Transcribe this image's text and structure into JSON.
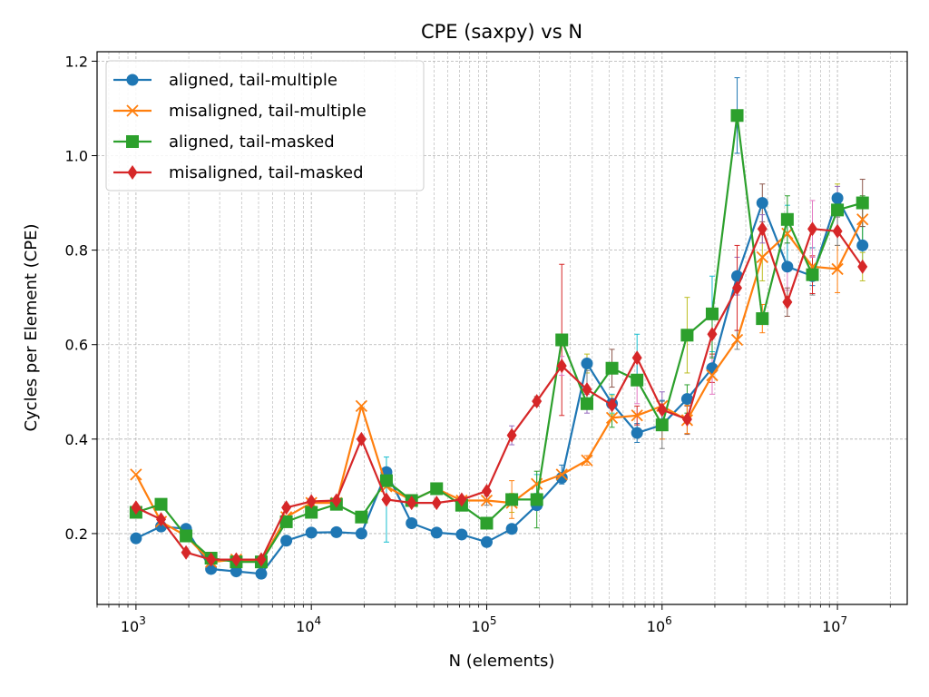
{
  "chart_data": {
    "type": "line",
    "title": "CPE (saxpy) vs N",
    "xlabel": "N (elements)",
    "ylabel": "Cycles per Element (CPE)",
    "xscale": "log",
    "xlim": [
      600,
      25000000
    ],
    "ylim": [
      0.05,
      1.22
    ],
    "yticks": [
      "0.2",
      "0.4",
      "0.6",
      "0.8",
      "1.0",
      "1.2"
    ],
    "xticks": [
      {
        "base": "10",
        "exp": "3"
      },
      {
        "base": "10",
        "exp": "4"
      },
      {
        "base": "10",
        "exp": "5"
      },
      {
        "base": "10",
        "exp": "6"
      },
      {
        "base": "10",
        "exp": "7"
      }
    ],
    "grid": true,
    "legend_position": "top-left",
    "x": [
      1000,
      1390,
      1930,
      2680,
      3730,
      5180,
      7200,
      10000,
      13900,
      19300,
      26800,
      37300,
      51800,
      72000,
      100000,
      139000,
      193000,
      268000,
      373000,
      518000,
      720000,
      1000000,
      1390000,
      1930000,
      2680000,
      3730000,
      5180000,
      7200000,
      10000000,
      13900000
    ],
    "series": [
      {
        "name": "aligned, tail-multiple",
        "color": "#1f77b4",
        "marker": "circle",
        "values": [
          0.19,
          0.215,
          0.21,
          0.125,
          0.12,
          0.115,
          0.185,
          0.202,
          0.203,
          0.2,
          0.33,
          0.222,
          0.202,
          0.198,
          0.182,
          0.21,
          0.26,
          0.318,
          0.56,
          0.475,
          0.413,
          0.43,
          0.485,
          0.55,
          0.745,
          0.9,
          0.765,
          0.745,
          0.91,
          0.81
        ],
        "errors": [
          0,
          0,
          0,
          0,
          0,
          0,
          0,
          0,
          0,
          0,
          0,
          0,
          0,
          0,
          0,
          0.01,
          0.01,
          0.01,
          0.02,
          0.02,
          0.02,
          0.03,
          0.03,
          0.03,
          0.04,
          0.04,
          0.05,
          0.04,
          0.03,
          0.04
        ]
      },
      {
        "name": "misaligned, tail-multiple",
        "color": "#ff7f0e",
        "marker": "x",
        "values": [
          0.325,
          0.225,
          0.195,
          0.14,
          0.145,
          0.14,
          0.235,
          0.265,
          0.265,
          0.47,
          0.3,
          0.27,
          0.295,
          0.27,
          0.27,
          0.265,
          0.305,
          0.325,
          0.355,
          0.445,
          0.45,
          0.47,
          0.44,
          0.535,
          0.61,
          0.785,
          0.835,
          0.765,
          0.76,
          0.865
        ],
        "errors": [
          0,
          0,
          0,
          0,
          0,
          0,
          0,
          0,
          0,
          0,
          0,
          0,
          0.01,
          0.01,
          0.01,
          0.02,
          0.02,
          0.02,
          0.01,
          0.02,
          0.02,
          0.03,
          0.03,
          0.04,
          0.02,
          0.05,
          0.06,
          0.04,
          0.05,
          0.05
        ]
      },
      {
        "name": "aligned, tail-masked",
        "color": "#2ca02c",
        "marker": "square",
        "values": [
          0.245,
          0.262,
          0.195,
          0.148,
          0.14,
          0.14,
          0.225,
          0.245,
          0.262,
          0.235,
          0.312,
          0.27,
          0.295,
          0.26,
          0.222,
          0.272,
          0.272,
          0.61,
          0.475,
          0.55,
          0.525,
          0.43,
          0.62,
          0.665,
          1.085,
          0.655,
          0.865,
          0.748,
          0.885,
          0.9
        ],
        "errors": [
          0,
          0,
          0,
          0,
          0,
          0,
          0,
          0,
          0,
          0,
          0,
          0,
          0.01,
          0.01,
          0.01,
          0.04,
          0.06,
          0.16,
          0.02,
          0.04,
          0.05,
          0.05,
          0.08,
          0.08,
          0.08,
          0.03,
          0.05,
          0.04,
          0.05,
          0.05
        ]
      },
      {
        "name": "misaligned, tail-masked",
        "color": "#d62728",
        "marker": "diamond",
        "values": [
          0.255,
          0.23,
          0.16,
          0.145,
          0.145,
          0.145,
          0.255,
          0.268,
          0.27,
          0.4,
          0.272,
          0.265,
          0.265,
          0.272,
          0.29,
          0.408,
          0.48,
          0.555,
          0.505,
          0.472,
          0.572,
          0.462,
          0.442,
          0.622,
          0.72,
          0.845,
          0.69,
          0.845,
          0.84,
          0.765
        ],
        "errors": [
          0,
          0,
          0,
          0,
          0,
          0,
          0,
          0,
          0,
          0,
          0.09,
          0,
          0,
          0,
          0,
          0.02,
          0.01,
          0.02,
          0.04,
          0.02,
          0.05,
          0.02,
          0.03,
          0.05,
          0.09,
          0.03,
          0.03,
          0.06,
          0.03,
          0.03
        ]
      }
    ]
  }
}
